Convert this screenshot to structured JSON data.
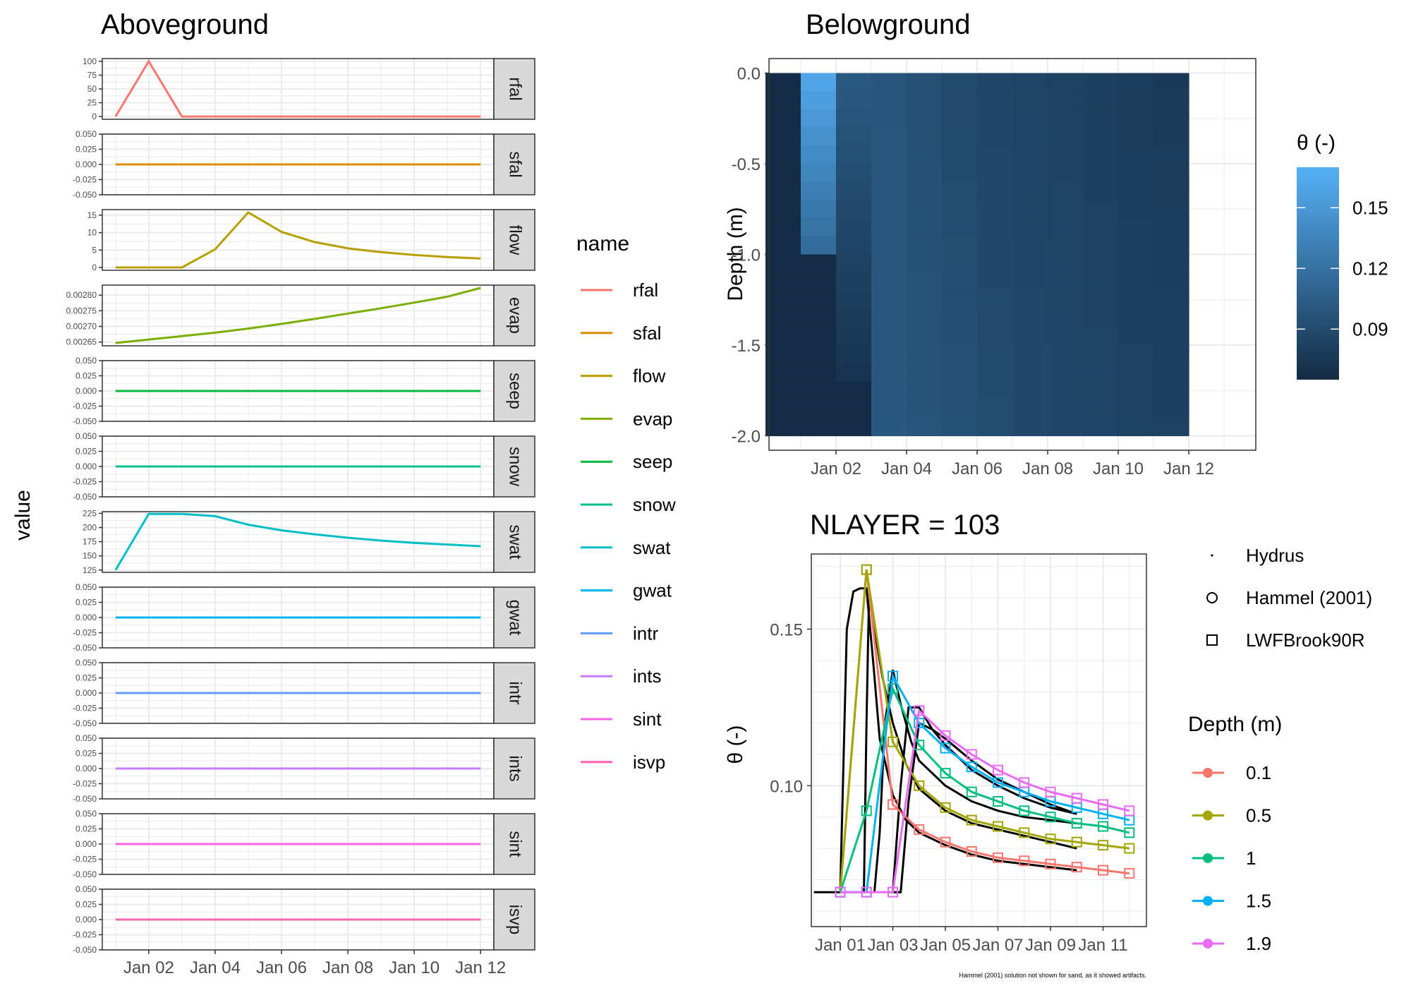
{
  "figure": {
    "note": "Hammel (2001) solution not shown for sand, as it showed artifacts."
  },
  "colors": {
    "rfal": "#F8766D",
    "sfal": "#DE8C00",
    "flow": "#B79F00",
    "evap": "#7CAE00",
    "seep": "#00BA38",
    "snow": "#00C08B",
    "swat": "#00BFC4",
    "gwat": "#00B4F0",
    "intr": "#619CFF",
    "ints": "#C77CFF",
    "sint": "#F564E3",
    "isvp": "#FF64B0",
    "d0_1": "#F8766D",
    "d0_5": "#A3A500",
    "d1": "#00BF7D",
    "d1_5": "#00B0F6",
    "d1_9": "#E76BF3",
    "panel_border": "#333333",
    "strip_bg": "#D9D9D9",
    "grid": "#EBEBEB",
    "black": "#000000"
  },
  "chart_data": [
    {
      "type": "line",
      "title": "Aboveground",
      "ylabel": "value",
      "x_tick_labels": [
        "Jan 02",
        "Jan 04",
        "Jan 06",
        "Jan 08",
        "Jan 10",
        "Jan 12"
      ],
      "x_tick_days": [
        2,
        4,
        6,
        8,
        10,
        12
      ],
      "x_days": [
        1,
        2,
        3,
        4,
        5,
        6,
        7,
        8,
        9,
        10,
        11,
        12
      ],
      "xlim": [
        0.6,
        12.4
      ],
      "legend_title": "name",
      "legend_position": "right",
      "facets": [
        {
          "name": "rfal",
          "ylim": [
            -5,
            105
          ],
          "yticks": [
            0,
            25,
            50,
            75,
            100
          ],
          "ytick_labels": [
            "0",
            "25",
            "50",
            "75",
            "100"
          ],
          "values": [
            0,
            100,
            0,
            0,
            0,
            0,
            0,
            0,
            0,
            0,
            0,
            0
          ]
        },
        {
          "name": "sfal",
          "ylim": [
            -0.05,
            0.05
          ],
          "yticks": [
            -0.05,
            -0.025,
            0,
            0.025,
            0.05
          ],
          "ytick_labels": [
            "-0.050",
            "-0.025",
            "0.000",
            "0.025",
            "0.050"
          ],
          "values": [
            0,
            0,
            0,
            0,
            0,
            0,
            0,
            0,
            0,
            0,
            0,
            0
          ]
        },
        {
          "name": "flow",
          "ylim": [
            -0.8,
            16.6
          ],
          "yticks": [
            0,
            5,
            10,
            15
          ],
          "ytick_labels": [
            "0",
            "5",
            "10",
            "15"
          ],
          "values": [
            0,
            0,
            0,
            5.2,
            15.8,
            10.2,
            7.3,
            5.5,
            4.4,
            3.6,
            3.0,
            2.6
          ]
        },
        {
          "name": "evap",
          "ylim": [
            0.002638,
            0.002832
          ],
          "yticks": [
            0.00265,
            0.0027,
            0.00275,
            0.0028
          ],
          "ytick_labels": [
            "0.00265",
            "0.00270",
            "0.00275",
            "0.00280"
          ],
          "values": [
            0.002647,
            0.002658,
            0.002669,
            0.00268,
            0.002693,
            0.002708,
            0.002724,
            0.002741,
            0.002758,
            0.002776,
            0.002795,
            0.002823
          ]
        },
        {
          "name": "seep",
          "ylim": [
            -0.05,
            0.05
          ],
          "yticks": [
            -0.05,
            -0.025,
            0,
            0.025,
            0.05
          ],
          "ytick_labels": [
            "-0.050",
            "-0.025",
            "0.000",
            "0.025",
            "0.050"
          ],
          "values": [
            0,
            0,
            0,
            0,
            0,
            0,
            0,
            0,
            0,
            0,
            0,
            0
          ]
        },
        {
          "name": "snow",
          "ylim": [
            -0.05,
            0.05
          ],
          "yticks": [
            -0.05,
            -0.025,
            0,
            0.025,
            0.05
          ],
          "ytick_labels": [
            "-0.050",
            "-0.025",
            "0.000",
            "0.025",
            "0.050"
          ],
          "values": [
            0,
            0,
            0,
            0,
            0,
            0,
            0,
            0,
            0,
            0,
            0,
            0
          ]
        },
        {
          "name": "swat",
          "ylim": [
            121,
            228
          ],
          "yticks": [
            125,
            150,
            175,
            200,
            225
          ],
          "ytick_labels": [
            "125",
            "150",
            "175",
            "200",
            "225"
          ],
          "values": [
            125,
            224,
            224,
            220,
            205,
            195,
            188,
            182,
            177,
            173,
            170,
            167
          ]
        },
        {
          "name": "gwat",
          "ylim": [
            -0.05,
            0.05
          ],
          "yticks": [
            -0.05,
            -0.025,
            0,
            0.025,
            0.05
          ],
          "ytick_labels": [
            "-0.050",
            "-0.025",
            "0.000",
            "0.025",
            "0.050"
          ],
          "values": [
            0,
            0,
            0,
            0,
            0,
            0,
            0,
            0,
            0,
            0,
            0,
            0
          ]
        },
        {
          "name": "intr",
          "ylim": [
            -0.05,
            0.05
          ],
          "yticks": [
            -0.05,
            -0.025,
            0,
            0.025,
            0.05
          ],
          "ytick_labels": [
            "-0.050",
            "-0.025",
            "0.000",
            "0.025",
            "0.050"
          ],
          "values": [
            0,
            0,
            0,
            0,
            0,
            0,
            0,
            0,
            0,
            0,
            0,
            0
          ]
        },
        {
          "name": "ints",
          "ylim": [
            -0.05,
            0.05
          ],
          "yticks": [
            -0.05,
            -0.025,
            0,
            0.025,
            0.05
          ],
          "ytick_labels": [
            "-0.050",
            "-0.025",
            "0.000",
            "0.025",
            "0.050"
          ],
          "values": [
            0,
            0,
            0,
            0,
            0,
            0,
            0,
            0,
            0,
            0,
            0,
            0
          ]
        },
        {
          "name": "sint",
          "ylim": [
            -0.05,
            0.05
          ],
          "yticks": [
            -0.05,
            -0.025,
            0,
            0.025,
            0.05
          ],
          "ytick_labels": [
            "-0.050",
            "-0.025",
            "0.000",
            "0.025",
            "0.050"
          ],
          "values": [
            0,
            0,
            0,
            0,
            0,
            0,
            0,
            0,
            0,
            0,
            0,
            0
          ]
        },
        {
          "name": "isvp",
          "ylim": [
            -0.05,
            0.05
          ],
          "yticks": [
            -0.05,
            -0.025,
            0,
            0.025,
            0.05
          ],
          "ytick_labels": [
            "-0.050",
            "-0.025",
            "0.000",
            "0.025",
            "0.050"
          ],
          "values": [
            0,
            0,
            0,
            0,
            0,
            0,
            0,
            0,
            0,
            0,
            0,
            0
          ]
        }
      ]
    },
    {
      "type": "heatmap",
      "title": "Belowground",
      "ylabel": "Depth (m)",
      "x_tick_labels": [
        "Jan 02",
        "Jan 04",
        "Jan 06",
        "Jan 08",
        "Jan 10",
        "Jan 12"
      ],
      "x_tick_days": [
        2,
        4,
        6,
        8,
        10,
        12
      ],
      "xlim": [
        0.1,
        13.9
      ],
      "yticks": [
        0,
        -0.5,
        -1,
        -1.5,
        -2
      ],
      "ytick_labels": [
        "0.0",
        "-0.5",
        "-1.0",
        "-1.5",
        "-2.0"
      ],
      "ylim": [
        -2.08,
        0.08
      ],
      "legend_title": "θ (-)",
      "legend_ticks": [
        0.09,
        0.12,
        0.15
      ],
      "legend_tick_labels": [
        "0.09",
        "0.12",
        "0.15"
      ],
      "legend_range": [
        0.065,
        0.17
      ],
      "columns": [
        {
          "day": 1,
          "theta_top": 0.066,
          "theta_bottom": 0.066,
          "front_depth": 0
        },
        {
          "day": 2,
          "theta_top": 0.162,
          "theta_bottom": 0.066,
          "front_depth": -1.0
        },
        {
          "day": 3,
          "theta_top": 0.102,
          "theta_bottom": 0.066,
          "front_depth": -1.75
        },
        {
          "day": 4,
          "theta_top": 0.098,
          "theta_bottom": 0.1,
          "front_depth": -2.0
        },
        {
          "day": 5,
          "theta_top": 0.093,
          "theta_bottom": 0.097,
          "front_depth": -2.0
        },
        {
          "day": 6,
          "theta_top": 0.089,
          "theta_bottom": 0.094,
          "front_depth": -2.0
        },
        {
          "day": 7,
          "theta_top": 0.086,
          "theta_bottom": 0.091,
          "front_depth": -2.0
        },
        {
          "day": 8,
          "theta_top": 0.084,
          "theta_bottom": 0.089,
          "front_depth": -2.0
        },
        {
          "day": 9,
          "theta_top": 0.082,
          "theta_bottom": 0.087,
          "front_depth": -2.0
        },
        {
          "day": 10,
          "theta_top": 0.08,
          "theta_bottom": 0.085,
          "front_depth": -2.0
        },
        {
          "day": 11,
          "theta_top": 0.078,
          "theta_bottom": 0.083,
          "front_depth": -2.0
        },
        {
          "day": 12,
          "theta_top": 0.077,
          "theta_bottom": 0.082,
          "front_depth": -2.0
        }
      ]
    },
    {
      "type": "line",
      "title": "NLAYER = 103",
      "ylabel": "θ (-)",
      "x_tick_labels": [
        "Jan 01",
        "Jan 03",
        "Jan 05",
        "Jan 07",
        "Jan 09",
        "Jan 11"
      ],
      "x_tick_days": [
        1,
        3,
        5,
        7,
        9,
        11
      ],
      "xlim": [
        -0.1,
        12.65
      ],
      "yticks": [
        0.1,
        0.15
      ],
      "ytick_labels": [
        "0.10",
        "0.15"
      ],
      "ylim": [
        0.055,
        0.174
      ],
      "shape_legend": [
        "Hydrus",
        "Hammel (2001)",
        "LWFBrook90R"
      ],
      "color_legend_title": "Depth (m)",
      "series": [
        {
          "name": "0.1",
          "x": [
            1,
            2,
            3,
            4,
            5,
            6,
            7,
            8,
            9,
            10,
            11,
            12
          ],
          "values": [
            0.066,
            0.169,
            0.094,
            0.086,
            0.082,
            0.079,
            0.077,
            0.076,
            0.075,
            0.074,
            0.073,
            0.072
          ]
        },
        {
          "name": "0.5",
          "x": [
            1,
            2,
            3,
            4,
            5,
            6,
            7,
            8,
            9,
            10,
            11,
            12
          ],
          "values": [
            0.066,
            0.169,
            0.114,
            0.1,
            0.093,
            0.089,
            0.087,
            0.085,
            0.083,
            0.082,
            0.081,
            0.08
          ]
        },
        {
          "name": "1",
          "x": [
            1,
            2,
            3,
            4,
            5,
            6,
            7,
            8,
            9,
            10,
            11,
            12
          ],
          "values": [
            0.066,
            0.092,
            0.131,
            0.113,
            0.104,
            0.098,
            0.095,
            0.092,
            0.09,
            0.088,
            0.087,
            0.085
          ]
        },
        {
          "name": "1.5",
          "x": [
            1,
            2,
            3,
            4,
            5,
            6,
            7,
            8,
            9,
            10,
            11,
            12
          ],
          "values": [
            0.066,
            0.066,
            0.135,
            0.12,
            0.112,
            0.106,
            0.101,
            0.098,
            0.095,
            0.093,
            0.091,
            0.089
          ]
        },
        {
          "name": "1.9",
          "x": [
            1,
            2,
            3,
            4,
            5,
            6,
            7,
            8,
            9,
            10,
            11,
            12
          ],
          "values": [
            0.066,
            0.066,
            0.066,
            0.124,
            0.116,
            0.11,
            0.105,
            0.101,
            0.098,
            0.096,
            0.094,
            0.092
          ]
        }
      ],
      "hydrus_series": [
        {
          "depth": "0.1",
          "x": [
            0.0,
            0.25,
            0.5,
            0.75,
            1.0,
            1.25,
            1.5,
            1.75,
            2.0,
            2.25,
            2.5,
            3.0,
            3.5,
            4.0,
            5.0,
            6.0,
            7.0,
            8.0,
            9.0,
            10.0
          ],
          "values": [
            0.066,
            0.066,
            0.066,
            0.066,
            0.066,
            0.15,
            0.162,
            0.163,
            0.163,
            0.14,
            0.115,
            0.097,
            0.089,
            0.085,
            0.081,
            0.078,
            0.076,
            0.075,
            0.074,
            0.073
          ]
        },
        {
          "depth": "0.5",
          "x": [
            1.9,
            2.0,
            2.1,
            2.3,
            2.6,
            3.0,
            3.5,
            4.0,
            5.0,
            6.0,
            7.0,
            8.0,
            9.0,
            10.0
          ],
          "values": [
            0.066,
            0.12,
            0.163,
            0.15,
            0.135,
            0.12,
            0.107,
            0.099,
            0.092,
            0.088,
            0.086,
            0.084,
            0.082,
            0.08
          ]
        },
        {
          "depth": "1",
          "x": [
            2.3,
            2.5,
            2.7,
            3.0,
            3.3,
            3.7,
            4.0,
            5.0,
            6.0,
            7.0,
            8.0,
            9.0,
            10.0
          ],
          "values": [
            0.066,
            0.085,
            0.12,
            0.137,
            0.126,
            0.114,
            0.108,
            0.1,
            0.095,
            0.092,
            0.09,
            0.089,
            0.088
          ]
        },
        {
          "depth": "1.5",
          "x": [
            2.8,
            3.0,
            3.3,
            3.6,
            4.0,
            4.5,
            5.0,
            6.0,
            7.0,
            8.0,
            9.0,
            10.0
          ],
          "values": [
            0.066,
            0.066,
            0.1,
            0.125,
            0.125,
            0.118,
            0.113,
            0.105,
            0.1,
            0.096,
            0.093,
            0.091
          ]
        },
        {
          "depth": "1.9",
          "x": [
            3.0,
            3.3,
            3.6,
            4.0,
            4.5,
            5.0,
            6.0,
            7.0,
            8.0,
            9.0,
            10.0
          ],
          "values": [
            0.066,
            0.066,
            0.095,
            0.12,
            0.118,
            0.115,
            0.108,
            0.102,
            0.098,
            0.094,
            0.091
          ]
        }
      ]
    }
  ]
}
